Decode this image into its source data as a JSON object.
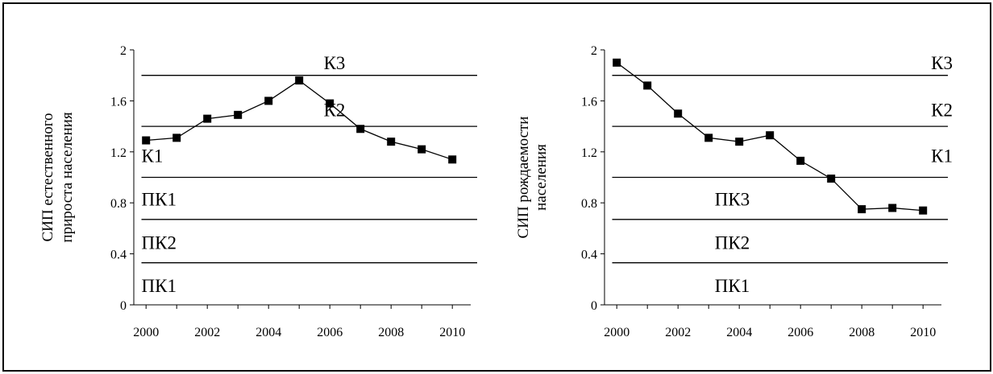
{
  "chart_data": [
    {
      "type": "line",
      "ylabel_lines": [
        "СИП естественного",
        "прироста населения"
      ],
      "x": [
        2000,
        2001,
        2002,
        2003,
        2004,
        2005,
        2006,
        2007,
        2008,
        2009,
        2010
      ],
      "series": [
        {
          "values": [
            1.29,
            1.31,
            1.46,
            1.49,
            1.6,
            1.76,
            1.58,
            1.38,
            1.28,
            1.22,
            1.14
          ]
        }
      ],
      "xticks": [
        "2000",
        "2002",
        "2004",
        "2006",
        "2008",
        "2010"
      ],
      "yticks": [
        "0",
        "0.4",
        "0.8",
        "1.2",
        "1.6",
        "2"
      ],
      "xlim": [
        1999.6,
        2010.6
      ],
      "ylim": [
        0,
        2
      ],
      "thresholds": [
        0.33,
        0.67,
        1.0,
        1.4,
        1.8
      ],
      "zones": [
        {
          "label": "К3",
          "y": 1.9,
          "x": 2005.8
        },
        {
          "label": "К2",
          "y": 1.53,
          "x": 2005.8
        },
        {
          "label": "К1",
          "y": 1.17,
          "x": 1999.85
        },
        {
          "label": "ПК1",
          "y": 0.83,
          "x": 1999.85
        },
        {
          "label": "ПК2",
          "y": 0.49,
          "x": 1999.85
        },
        {
          "label": "ПК1",
          "y": 0.15,
          "x": 1999.85
        }
      ],
      "marker": "square",
      "grid": false,
      "color": "#000000"
    },
    {
      "type": "line",
      "ylabel_lines": [
        "СИП  рождаемости",
        "населения"
      ],
      "x": [
        2000,
        2001,
        2002,
        2003,
        2004,
        2005,
        2006,
        2007,
        2008,
        2009,
        2010
      ],
      "series": [
        {
          "values": [
            1.9,
            1.72,
            1.5,
            1.31,
            1.28,
            1.33,
            1.13,
            0.99,
            0.75,
            0.76,
            0.74
          ]
        }
      ],
      "xticks": [
        "2000",
        "2002",
        "2004",
        "2006",
        "2008",
        "2010"
      ],
      "yticks": [
        "0",
        "0.4",
        "0.8",
        "1.2",
        "1.6",
        "2"
      ],
      "xlim": [
        1999.6,
        2010.6
      ],
      "ylim": [
        0,
        2
      ],
      "thresholds": [
        0.33,
        0.67,
        1.0,
        1.4,
        1.8
      ],
      "zones": [
        {
          "label": "К3",
          "y": 1.9,
          "x": 2009.85
        },
        {
          "label": "К2",
          "y": 1.53,
          "x": 2009.85
        },
        {
          "label": "К1",
          "y": 1.17,
          "x": 2009.85
        },
        {
          "label": "ПК3",
          "y": 0.83,
          "x": 2003.2
        },
        {
          "label": "ПК2",
          "y": 0.49,
          "x": 2003.2
        },
        {
          "label": "ПК1",
          "y": 0.15,
          "x": 2003.2
        }
      ],
      "marker": "square",
      "grid": false,
      "color": "#000000"
    }
  ]
}
